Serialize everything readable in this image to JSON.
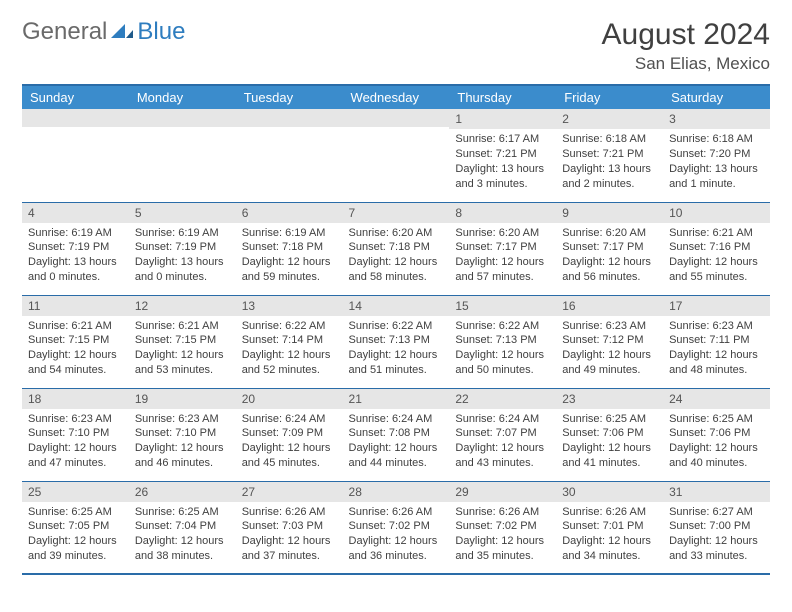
{
  "logo": {
    "text1": "General",
    "text2": "Blue"
  },
  "title": "August 2024",
  "location": "San Elias, Mexico",
  "header_bg": "#3b8ccc",
  "border_color": "#2a6ca8",
  "daynum_bg": "#e6e6e6",
  "weekdays": [
    "Sunday",
    "Monday",
    "Tuesday",
    "Wednesday",
    "Thursday",
    "Friday",
    "Saturday"
  ],
  "weeks": [
    [
      {
        "n": "",
        "sr": "",
        "ss": "",
        "dl": ""
      },
      {
        "n": "",
        "sr": "",
        "ss": "",
        "dl": ""
      },
      {
        "n": "",
        "sr": "",
        "ss": "",
        "dl": ""
      },
      {
        "n": "",
        "sr": "",
        "ss": "",
        "dl": ""
      },
      {
        "n": "1",
        "sr": "Sunrise: 6:17 AM",
        "ss": "Sunset: 7:21 PM",
        "dl": "Daylight: 13 hours and 3 minutes."
      },
      {
        "n": "2",
        "sr": "Sunrise: 6:18 AM",
        "ss": "Sunset: 7:21 PM",
        "dl": "Daylight: 13 hours and 2 minutes."
      },
      {
        "n": "3",
        "sr": "Sunrise: 6:18 AM",
        "ss": "Sunset: 7:20 PM",
        "dl": "Daylight: 13 hours and 1 minute."
      }
    ],
    [
      {
        "n": "4",
        "sr": "Sunrise: 6:19 AM",
        "ss": "Sunset: 7:19 PM",
        "dl": "Daylight: 13 hours and 0 minutes."
      },
      {
        "n": "5",
        "sr": "Sunrise: 6:19 AM",
        "ss": "Sunset: 7:19 PM",
        "dl": "Daylight: 13 hours and 0 minutes."
      },
      {
        "n": "6",
        "sr": "Sunrise: 6:19 AM",
        "ss": "Sunset: 7:18 PM",
        "dl": "Daylight: 12 hours and 59 minutes."
      },
      {
        "n": "7",
        "sr": "Sunrise: 6:20 AM",
        "ss": "Sunset: 7:18 PM",
        "dl": "Daylight: 12 hours and 58 minutes."
      },
      {
        "n": "8",
        "sr": "Sunrise: 6:20 AM",
        "ss": "Sunset: 7:17 PM",
        "dl": "Daylight: 12 hours and 57 minutes."
      },
      {
        "n": "9",
        "sr": "Sunrise: 6:20 AM",
        "ss": "Sunset: 7:17 PM",
        "dl": "Daylight: 12 hours and 56 minutes."
      },
      {
        "n": "10",
        "sr": "Sunrise: 6:21 AM",
        "ss": "Sunset: 7:16 PM",
        "dl": "Daylight: 12 hours and 55 minutes."
      }
    ],
    [
      {
        "n": "11",
        "sr": "Sunrise: 6:21 AM",
        "ss": "Sunset: 7:15 PM",
        "dl": "Daylight: 12 hours and 54 minutes."
      },
      {
        "n": "12",
        "sr": "Sunrise: 6:21 AM",
        "ss": "Sunset: 7:15 PM",
        "dl": "Daylight: 12 hours and 53 minutes."
      },
      {
        "n": "13",
        "sr": "Sunrise: 6:22 AM",
        "ss": "Sunset: 7:14 PM",
        "dl": "Daylight: 12 hours and 52 minutes."
      },
      {
        "n": "14",
        "sr": "Sunrise: 6:22 AM",
        "ss": "Sunset: 7:13 PM",
        "dl": "Daylight: 12 hours and 51 minutes."
      },
      {
        "n": "15",
        "sr": "Sunrise: 6:22 AM",
        "ss": "Sunset: 7:13 PM",
        "dl": "Daylight: 12 hours and 50 minutes."
      },
      {
        "n": "16",
        "sr": "Sunrise: 6:23 AM",
        "ss": "Sunset: 7:12 PM",
        "dl": "Daylight: 12 hours and 49 minutes."
      },
      {
        "n": "17",
        "sr": "Sunrise: 6:23 AM",
        "ss": "Sunset: 7:11 PM",
        "dl": "Daylight: 12 hours and 48 minutes."
      }
    ],
    [
      {
        "n": "18",
        "sr": "Sunrise: 6:23 AM",
        "ss": "Sunset: 7:10 PM",
        "dl": "Daylight: 12 hours and 47 minutes."
      },
      {
        "n": "19",
        "sr": "Sunrise: 6:23 AM",
        "ss": "Sunset: 7:10 PM",
        "dl": "Daylight: 12 hours and 46 minutes."
      },
      {
        "n": "20",
        "sr": "Sunrise: 6:24 AM",
        "ss": "Sunset: 7:09 PM",
        "dl": "Daylight: 12 hours and 45 minutes."
      },
      {
        "n": "21",
        "sr": "Sunrise: 6:24 AM",
        "ss": "Sunset: 7:08 PM",
        "dl": "Daylight: 12 hours and 44 minutes."
      },
      {
        "n": "22",
        "sr": "Sunrise: 6:24 AM",
        "ss": "Sunset: 7:07 PM",
        "dl": "Daylight: 12 hours and 43 minutes."
      },
      {
        "n": "23",
        "sr": "Sunrise: 6:25 AM",
        "ss": "Sunset: 7:06 PM",
        "dl": "Daylight: 12 hours and 41 minutes."
      },
      {
        "n": "24",
        "sr": "Sunrise: 6:25 AM",
        "ss": "Sunset: 7:06 PM",
        "dl": "Daylight: 12 hours and 40 minutes."
      }
    ],
    [
      {
        "n": "25",
        "sr": "Sunrise: 6:25 AM",
        "ss": "Sunset: 7:05 PM",
        "dl": "Daylight: 12 hours and 39 minutes."
      },
      {
        "n": "26",
        "sr": "Sunrise: 6:25 AM",
        "ss": "Sunset: 7:04 PM",
        "dl": "Daylight: 12 hours and 38 minutes."
      },
      {
        "n": "27",
        "sr": "Sunrise: 6:26 AM",
        "ss": "Sunset: 7:03 PM",
        "dl": "Daylight: 12 hours and 37 minutes."
      },
      {
        "n": "28",
        "sr": "Sunrise: 6:26 AM",
        "ss": "Sunset: 7:02 PM",
        "dl": "Daylight: 12 hours and 36 minutes."
      },
      {
        "n": "29",
        "sr": "Sunrise: 6:26 AM",
        "ss": "Sunset: 7:02 PM",
        "dl": "Daylight: 12 hours and 35 minutes."
      },
      {
        "n": "30",
        "sr": "Sunrise: 6:26 AM",
        "ss": "Sunset: 7:01 PM",
        "dl": "Daylight: 12 hours and 34 minutes."
      },
      {
        "n": "31",
        "sr": "Sunrise: 6:27 AM",
        "ss": "Sunset: 7:00 PM",
        "dl": "Daylight: 12 hours and 33 minutes."
      }
    ]
  ]
}
